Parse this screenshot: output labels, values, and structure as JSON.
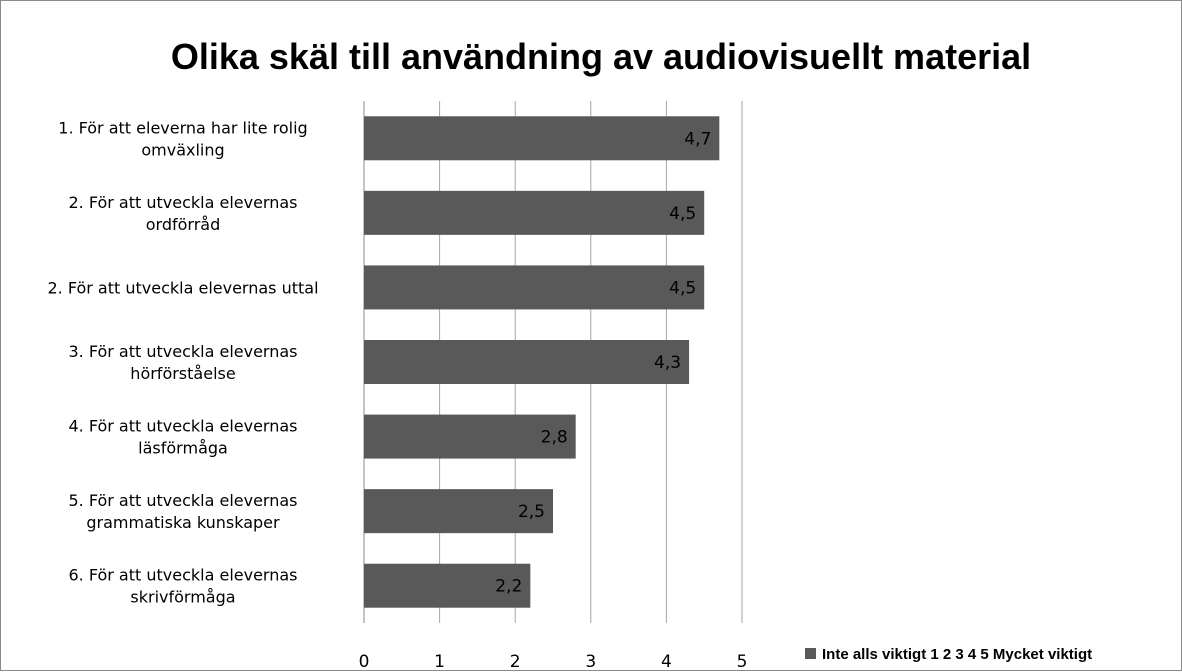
{
  "chart_data": {
    "type": "bar",
    "orientation": "horizontal",
    "title": "Olika skäl till användning av audiovisuellt material",
    "xlabel": "",
    "ylabel": "",
    "xlim": [
      0,
      5
    ],
    "x_ticks": [
      "0",
      "1",
      "2",
      "3",
      "4",
      "5"
    ],
    "grid": "vertical",
    "legend_position": "bottom-right",
    "bar_color": "#595959",
    "categories": [
      [
        "1. För att eleverna har lite rolig",
        "omväxling"
      ],
      [
        "2. För att utveckla elevernas",
        "ordförråd"
      ],
      [
        "2. För att utveckla elevernas uttal"
      ],
      [
        "3. För att utveckla elevernas",
        "hörförståelse"
      ],
      [
        "4. För att utveckla elevernas",
        "läsförmåga"
      ],
      [
        "5. För att utveckla elevernas",
        "grammatiska kunskaper"
      ],
      [
        "6. För att utveckla elevernas",
        "skrivförmåga"
      ]
    ],
    "series": [
      {
        "name": "Inte alls viktigt 1 2 3 4 5 Mycket viktigt",
        "values": [
          4.7,
          4.5,
          4.5,
          4.3,
          2.8,
          2.5,
          2.2
        ],
        "labels": [
          "4,7",
          "4,5",
          "4,5",
          "4,3",
          "2,8",
          "2,5",
          "2,2"
        ]
      }
    ]
  }
}
